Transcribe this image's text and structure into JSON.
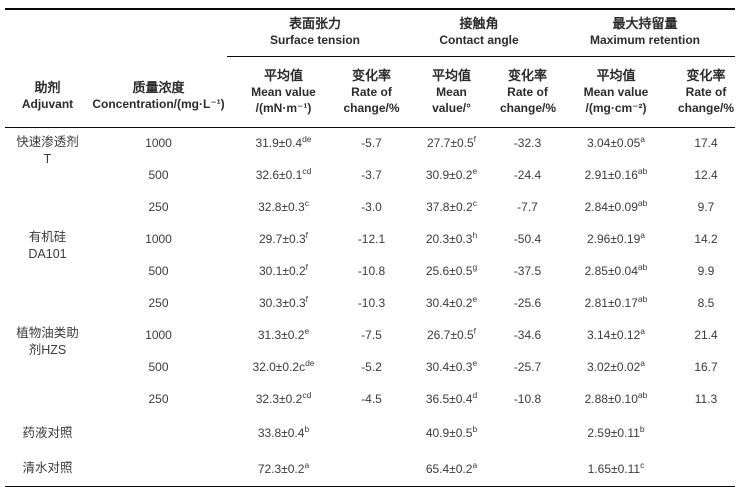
{
  "header": {
    "adjuvant": [
      "助剂",
      "Adjuvant"
    ],
    "concentration": [
      "质量浓度",
      "Concentration/(mg·L⁻¹)"
    ],
    "groups": [
      {
        "zh": "表面张力",
        "en": "Surface tension",
        "sub": [
          [
            "平均值",
            "Mean value",
            "/(mN·m⁻¹)"
          ],
          [
            "变化率",
            "Rate of",
            "change/%"
          ]
        ]
      },
      {
        "zh": "接触角",
        "en": "Contact angle",
        "sub": [
          [
            "平均值",
            "Mean",
            "value/°"
          ],
          [
            "变化率",
            "Rate of",
            "change/%"
          ]
        ]
      },
      {
        "zh": "最大持留量",
        "en": "Maximum retention",
        "sub": [
          [
            "平均值",
            "Mean value",
            "/(mg·cm⁻²)"
          ],
          [
            "变化率",
            "Rate of",
            "change/%"
          ]
        ]
      }
    ]
  },
  "body": {
    "groups": [
      {
        "name_lines": [
          "快速渗透剂",
          "T"
        ],
        "rows": [
          [
            "1000",
            "31.9±0.4^de",
            "-5.7",
            "27.7±0.5^f",
            "-32.3",
            "3.04±0.05^a",
            "17.4"
          ],
          [
            "500",
            "32.6±0.1^cd",
            "-3.7",
            "30.9±0.2^e",
            "-24.4",
            "2.91±0.16^ab",
            "12.4"
          ],
          [
            "250",
            "32.8±0.3^c",
            "-3.0",
            "37.8±0.2^c",
            "-7.7",
            "2.84±0.09^ab",
            "9.7"
          ]
        ]
      },
      {
        "name_lines": [
          "有机硅",
          "DA101"
        ],
        "rows": [
          [
            "1000",
            "29.7±0.3^f",
            "-12.1",
            "20.3±0.3^h",
            "-50.4",
            "2.96±0.19^a",
            "14.2"
          ],
          [
            "500",
            "30.1±0.2^f",
            "-10.8",
            "25.6±0.5^g",
            "-37.5",
            "2.85±0.04^ab",
            "9.9"
          ],
          [
            "250",
            "30.3±0.3^f",
            "-10.3",
            "30.4±0.2^e",
            "-25.6",
            "2.81±0.17^ab",
            "8.5"
          ]
        ]
      },
      {
        "name_lines": [
          "植物油类助",
          "剂HZS"
        ],
        "rows": [
          [
            "1000",
            "31.3±0.2^e",
            "-7.5",
            "26.7±0.5^f",
            "-34.6",
            "3.14±0.12^a",
            "21.4"
          ],
          [
            "500",
            "32.0±0.2c^de",
            "-5.2",
            "30.4±0.3^e",
            "-25.7",
            "3.02±0.02^a",
            "16.7"
          ],
          [
            "250",
            "32.3±0.2^cd",
            "-4.5",
            "36.5±0.4^d",
            "-10.8",
            "2.88±0.10^ab",
            "11.3"
          ]
        ]
      },
      {
        "name_lines": [
          "药液对照"
        ],
        "rows": [
          [
            "",
            "33.8±0.4^b",
            "",
            "40.9±0.5^b",
            "",
            "2.59±0.11^b",
            ""
          ]
        ]
      },
      {
        "name_lines": [
          "清水对照"
        ],
        "rows": [
          [
            "",
            "72.3±0.2^a",
            "",
            "65.4±0.2^a",
            "",
            "1.65±0.11^c",
            ""
          ]
        ]
      }
    ]
  }
}
